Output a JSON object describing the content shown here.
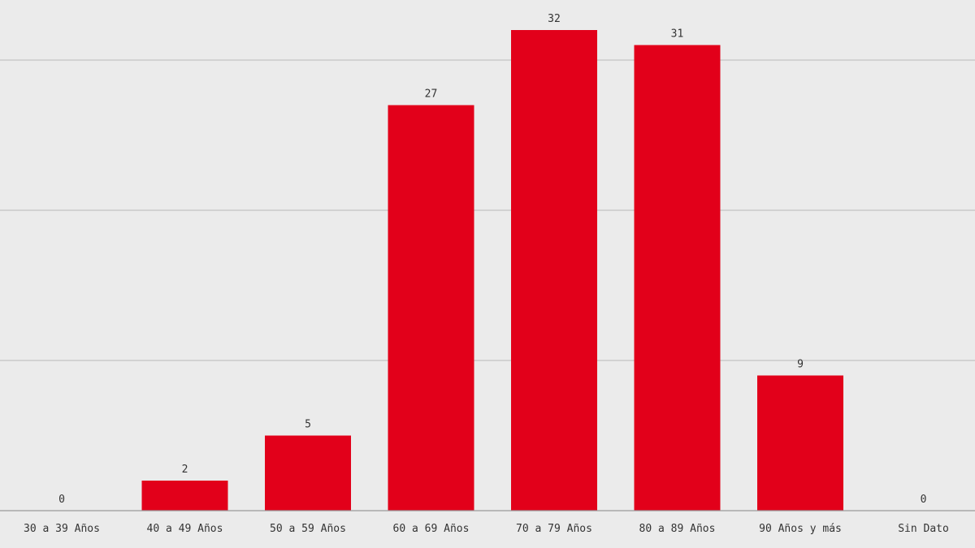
{
  "chart_data": {
    "type": "bar",
    "categories": [
      "30 a 39 Años",
      "40 a 49 Años",
      "50 a 59 Años",
      "60 a 69 Años",
      "70 a 79 Años",
      "80 a 89 Años",
      "90 Años y más",
      "Sin Dato"
    ],
    "values": [
      0,
      2,
      5,
      27,
      32,
      31,
      9,
      0
    ],
    "title": "",
    "xlabel": "",
    "ylabel": "",
    "ylim": [
      0,
      34
    ],
    "gridlines": [
      10,
      20,
      30
    ],
    "grid": true,
    "legend": "none",
    "colors": {
      "bar": "#e2001a",
      "background": "#ebebeb"
    }
  }
}
